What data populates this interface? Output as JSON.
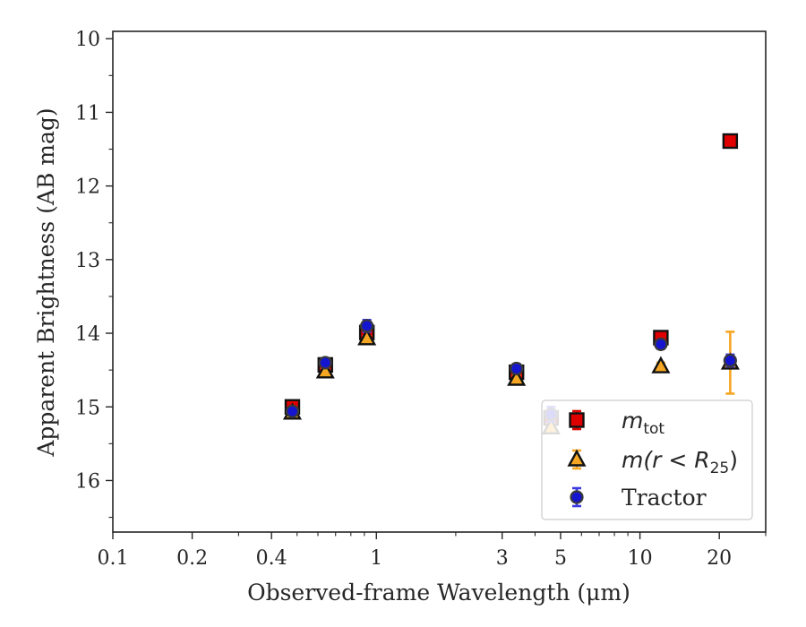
{
  "chart_data": {
    "type": "scatter",
    "xlabel": "Observed-frame Wavelength (μm)",
    "ylabel": "Apparent Brightness (AB mag)",
    "xscale": "log",
    "xlim": [
      0.1,
      30
    ],
    "ylim": [
      16.7,
      9.9
    ],
    "y_inverted": true,
    "grid": false,
    "legend": "lower-right",
    "x_ticks": [
      {
        "value": 0.1,
        "label": "0.1"
      },
      {
        "value": 0.2,
        "label": "0.2"
      },
      {
        "value": 0.4,
        "label": "0.4"
      },
      {
        "value": 1,
        "label": "1"
      },
      {
        "value": 3,
        "label": "3"
      },
      {
        "value": 5,
        "label": "5"
      },
      {
        "value": 10,
        "label": "10"
      },
      {
        "value": 20,
        "label": "20"
      }
    ],
    "y_ticks": [
      {
        "value": 10,
        "label": "10"
      },
      {
        "value": 11,
        "label": "11"
      },
      {
        "value": 12,
        "label": "12"
      },
      {
        "value": 13,
        "label": "13"
      },
      {
        "value": 14,
        "label": "14"
      },
      {
        "value": 15,
        "label": "15"
      },
      {
        "value": 16,
        "label": "16"
      }
    ],
    "series": [
      {
        "name": "m_tot",
        "label_main": "m",
        "label_sub": "tot",
        "marker": "square",
        "color": "#e00000",
        "errcolor": "#e00000",
        "x": [
          0.48,
          0.64,
          0.92,
          3.4,
          4.6,
          12,
          22
        ],
        "y": [
          15.0,
          14.43,
          13.99,
          14.53,
          15.15,
          14.06,
          11.39
        ],
        "err": [
          0.04,
          0.04,
          0.04,
          0.05,
          0.06,
          0.04,
          0.06
        ]
      },
      {
        "name": "m(r<R25)",
        "label_main": "m(r < R",
        "label_sub": "25",
        "label_tail": ")",
        "marker": "triangle",
        "color": "#f5a623",
        "errcolor": "#f5a623",
        "x": [
          0.48,
          0.64,
          0.92,
          3.4,
          4.6,
          12,
          22
        ],
        "y": [
          15.08,
          14.52,
          14.07,
          14.62,
          15.28,
          14.45,
          14.4
        ],
        "err": [
          0.03,
          0.03,
          0.03,
          0.04,
          0.06,
          0.05,
          0.42
        ]
      },
      {
        "name": "Tractor",
        "label_main": "Tractor",
        "marker": "circle",
        "color": "#1515d0",
        "errcolor": "#3a3ae0",
        "x": [
          0.48,
          0.64,
          0.92,
          3.4,
          4.6,
          12,
          22
        ],
        "y": [
          15.06,
          14.4,
          13.9,
          14.48,
          15.1,
          14.15,
          14.37
        ],
        "err": [
          0.04,
          0.04,
          0.08,
          0.06,
          0.1,
          0.06,
          0.08
        ]
      }
    ]
  }
}
